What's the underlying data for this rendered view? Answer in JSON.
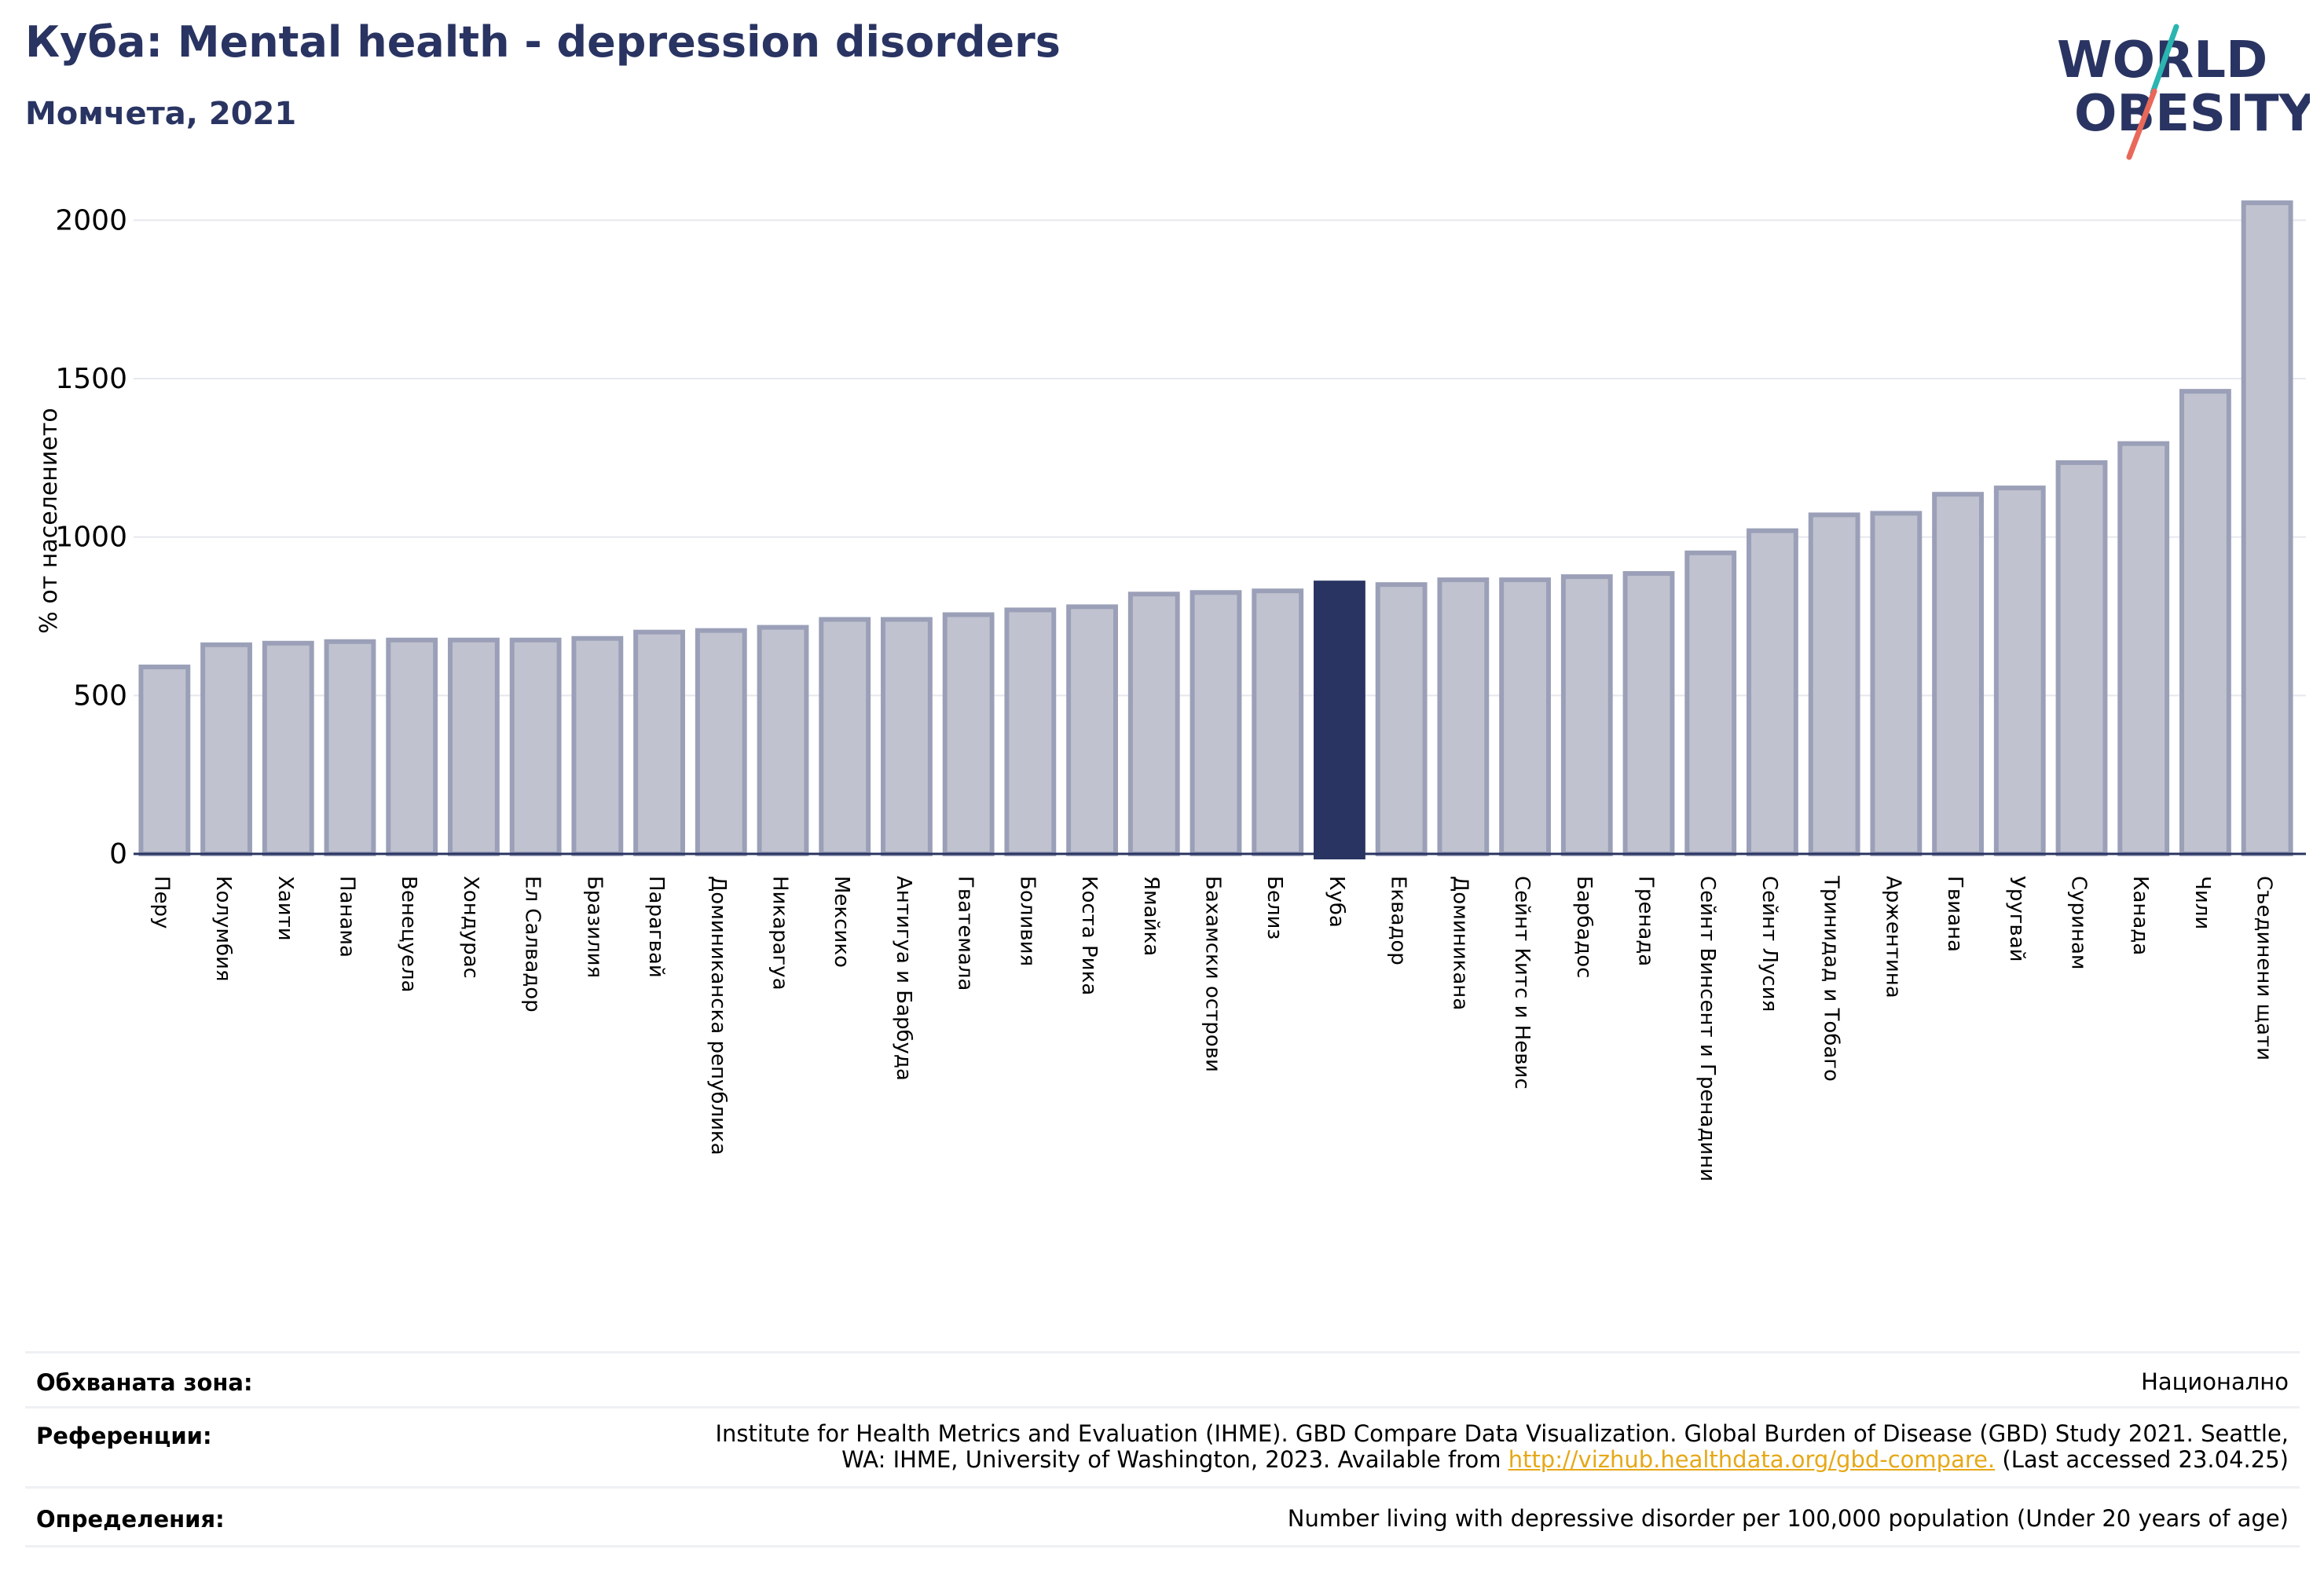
{
  "header": {
    "title": "Куба: Mental health - depression disorders",
    "subtitle": "Момчета, 2021"
  },
  "logo": {
    "line1": "WORLD",
    "line2": "OBESITY"
  },
  "colors": {
    "highlight": "#293462",
    "bar_fill": "#c0c3cf",
    "bar_stroke": "#9ba0b8",
    "title": "#293462",
    "link": "#e6a817"
  },
  "chart_data": {
    "type": "bar",
    "ylabel": "% от населението",
    "ylim": [
      0,
      2100
    ],
    "yticks": [
      0,
      500,
      1000,
      1500,
      2000
    ],
    "grid": true,
    "highlight": "Куба",
    "categories": [
      "Перу",
      "Колумбия",
      "Хаити",
      "Панама",
      "Венецуела",
      "Хондурас",
      "Ел Салвадор",
      "Бразилия",
      "Парагвай",
      "Доминиканска република",
      "Никарагуа",
      "Мексико",
      "Антигуа и Барбуда",
      "Гватемала",
      "Боливия",
      "Коста Рика",
      "Ямайка",
      "Бахамски острови",
      "Белиз",
      "Куба",
      "Еквадор",
      "Доминикана",
      "Сейнт Китс и Невис",
      "Барбадос",
      "Гренада",
      "Сейнт Винсент и Гренадини",
      "Сейнт Лусия",
      "Тринидад и Тобаго",
      "Аржентина",
      "Гвиана",
      "Уругвай",
      "Суринам",
      "Канада",
      "Чили",
      "Съединени щати"
    ],
    "values": [
      590,
      660,
      665,
      670,
      675,
      675,
      675,
      680,
      700,
      705,
      715,
      740,
      740,
      755,
      770,
      780,
      820,
      825,
      830,
      855,
      850,
      865,
      865,
      875,
      885,
      950,
      1020,
      1070,
      1075,
      1135,
      1155,
      1235,
      1295,
      1460,
      2055
    ]
  },
  "info": {
    "coverage_label": "Обхваната зона:",
    "coverage_value": "Национално",
    "references_label": "Референции:",
    "references_line1": "Institute for Health Metrics and Evaluation (IHME). GBD Compare Data Visualization. Global Burden of Disease (GBD) Study 2021. Seattle,",
    "references_line2_pre": "WA: IHME, University of Washington, 2023. Available from ",
    "references_link": "http://vizhub.healthdata.org/gbd-compare.",
    "references_line2_post": " (Last accessed 23.04.25)",
    "definitions_label": "Определения:",
    "definitions_value": "Number living with depressive disorder per 100,000 population (Under 20 years of age)"
  }
}
